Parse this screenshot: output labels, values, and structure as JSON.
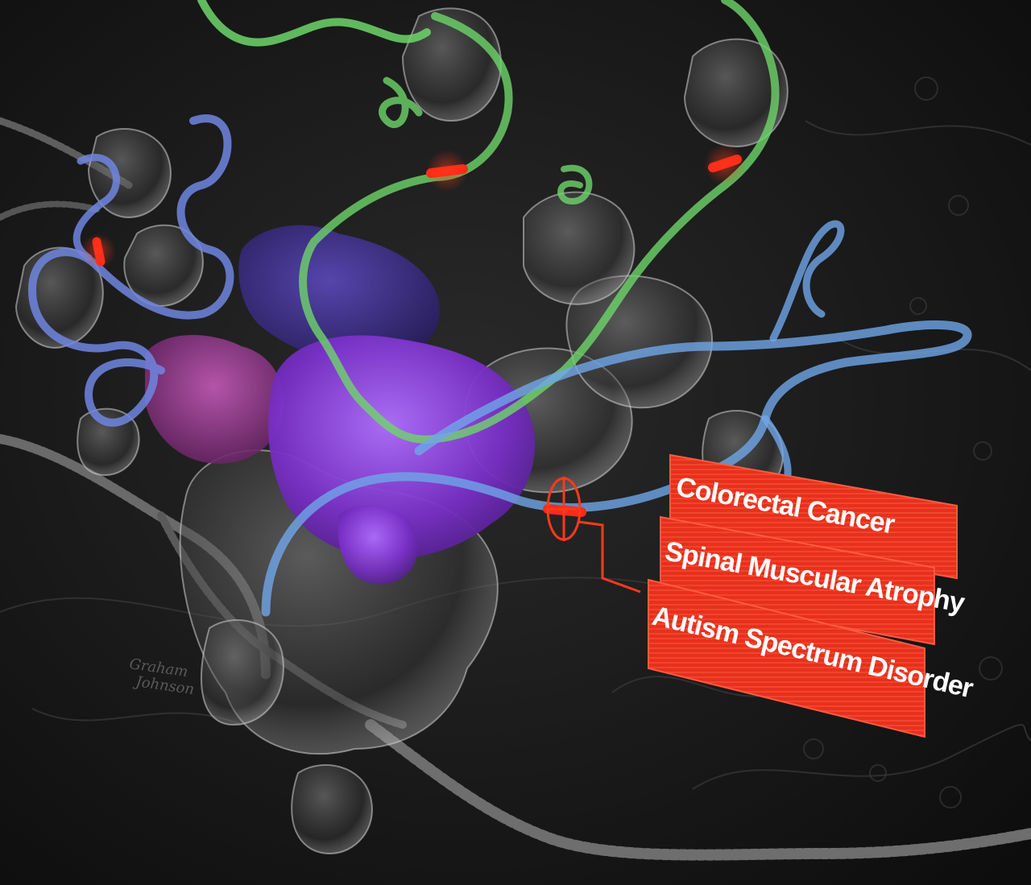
{
  "illustration": {
    "colors": {
      "background": "#151515",
      "chromatin": "#6a6a6a",
      "protein_gray": "#9a9a9a",
      "green_rna": "#6ed66a",
      "blue_rna": "#6f86e0",
      "light_blue_rna": "#6fa6e8",
      "purple_protein": "#8a3fd0",
      "magenta_protein": "#b04aa8",
      "mutation_red": "#ff2a1a",
      "label_fill": "#e8301c",
      "label_text": "#ffffff"
    },
    "signature": {
      "line1": "Graham",
      "line2": "Johnson"
    },
    "disease_labels": [
      "Colorectal Cancer",
      "Spinal Muscular Atrophy",
      "Autism Spectrum Disorder"
    ]
  }
}
